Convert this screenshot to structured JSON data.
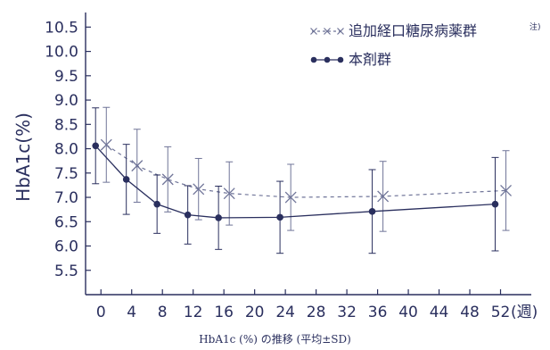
{
  "caption": "HbA1c (%) の推移 (平均±SD)",
  "colors": {
    "ink": "#2a2f5e",
    "series_add": "#6f7498",
    "series_main": "#2a2f5e"
  },
  "chart_data": {
    "type": "line",
    "ylabel": "HbA1c(%)",
    "xlabel": "",
    "x_unit_label": "(週)",
    "xlim": [
      -2,
      56
    ],
    "ylim": [
      5.0,
      10.8
    ],
    "x_ticks": [
      0,
      4,
      8,
      12,
      16,
      20,
      24,
      28,
      32,
      36,
      40,
      44,
      48,
      52
    ],
    "y_ticks": [
      5.5,
      6.0,
      6.5,
      7.0,
      7.5,
      8.0,
      8.5,
      9.0,
      9.5,
      10.0,
      10.5
    ],
    "y_tick_labels": [
      "5.5",
      "6.0",
      "6.5",
      "7.0",
      "7.5",
      "8.0",
      "8.5",
      "9.0",
      "9.5",
      "10.0",
      "10.5"
    ],
    "grid": false,
    "legend_position": "top-right",
    "series": [
      {
        "name": "追加経口糖尿病薬群",
        "name_note": "注)",
        "marker": "x",
        "line_style": "dashed",
        "x": [
          0.7,
          4.7,
          8.7,
          12.7,
          16.7,
          24.7,
          36.7,
          52.7
        ],
        "y": [
          8.08,
          7.65,
          7.37,
          7.17,
          7.08,
          7.0,
          7.02,
          7.14
        ],
        "sd": [
          0.77,
          0.75,
          0.67,
          0.63,
          0.65,
          0.68,
          0.72,
          0.82
        ]
      },
      {
        "name": "本剤群",
        "marker": "circle",
        "line_style": "solid",
        "x": [
          -0.7,
          3.3,
          7.3,
          11.3,
          15.3,
          23.3,
          35.3,
          51.3
        ],
        "y": [
          8.06,
          7.37,
          6.86,
          6.64,
          6.58,
          6.59,
          6.71,
          6.86
        ],
        "sd": [
          0.78,
          0.72,
          0.6,
          0.6,
          0.65,
          0.74,
          0.86,
          0.96
        ]
      }
    ]
  }
}
